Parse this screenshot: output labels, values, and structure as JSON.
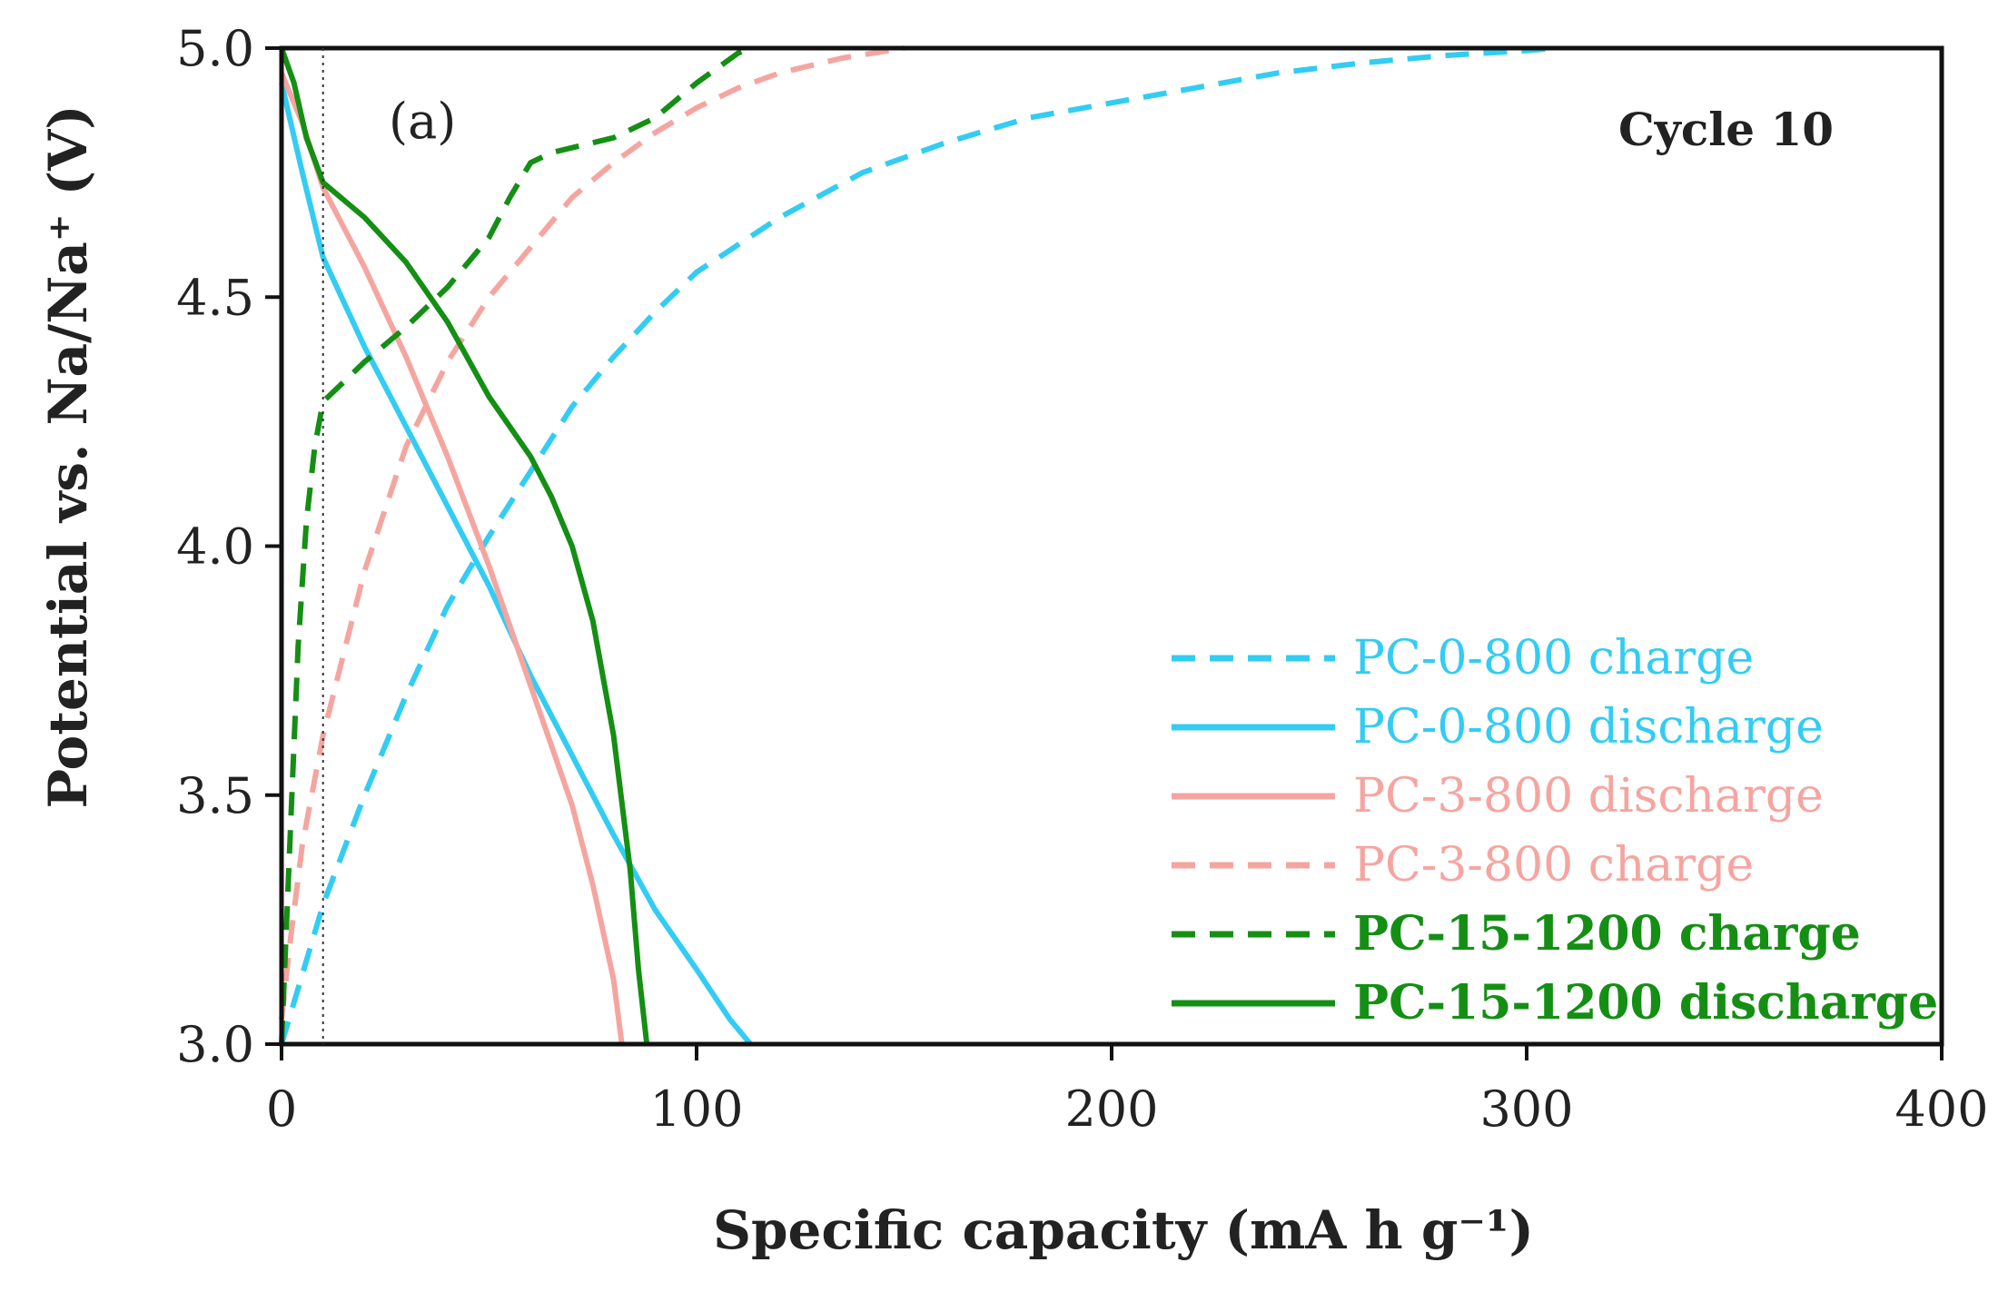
{
  "chart_data": {
    "type": "line",
    "panel_label": "(a)",
    "annotation": "Cycle 10",
    "xlabel": "Specific capacity (mA h g⁻¹)",
    "ylabel": "Potential vs. Na/Na⁺ (V)",
    "xlim": [
      0,
      400
    ],
    "ylim": [
      3.0,
      5.0
    ],
    "x_ticks": [
      0,
      100,
      200,
      300,
      400
    ],
    "y_ticks": [
      3.0,
      3.5,
      4.0,
      4.5,
      5.0
    ],
    "x_tick_labels": [
      "0",
      "100",
      "200",
      "300",
      "400"
    ],
    "y_tick_labels": [
      "3.0",
      "3.5",
      "4.0",
      "4.5",
      "5.0"
    ],
    "reference_line_x": 10,
    "legend_position": "bottom-right",
    "series": [
      {
        "name": "PC-0-800 charge",
        "color": "#33ccf2",
        "style": "dashed",
        "points": [
          [
            0,
            3.0
          ],
          [
            5,
            3.14
          ],
          [
            10,
            3.28
          ],
          [
            20,
            3.5
          ],
          [
            30,
            3.7
          ],
          [
            40,
            3.88
          ],
          [
            50,
            4.02
          ],
          [
            60,
            4.15
          ],
          [
            70,
            4.28
          ],
          [
            80,
            4.38
          ],
          [
            90,
            4.47
          ],
          [
            100,
            4.55
          ],
          [
            120,
            4.66
          ],
          [
            140,
            4.75
          ],
          [
            160,
            4.81
          ],
          [
            180,
            4.86
          ],
          [
            200,
            4.89
          ],
          [
            220,
            4.92
          ],
          [
            240,
            4.95
          ],
          [
            260,
            4.97
          ],
          [
            280,
            4.985
          ],
          [
            300,
            4.995
          ],
          [
            307,
            5.0
          ]
        ]
      },
      {
        "name": "PC-0-800 discharge",
        "color": "#33ccf2",
        "style": "solid",
        "points": [
          [
            0,
            4.93
          ],
          [
            5,
            4.75
          ],
          [
            10,
            4.58
          ],
          [
            20,
            4.4
          ],
          [
            30,
            4.24
          ],
          [
            40,
            4.08
          ],
          [
            50,
            3.92
          ],
          [
            60,
            3.74
          ],
          [
            70,
            3.58
          ],
          [
            80,
            3.42
          ],
          [
            90,
            3.27
          ],
          [
            100,
            3.15
          ],
          [
            108,
            3.05
          ],
          [
            113,
            3.0
          ]
        ]
      },
      {
        "name": "PC-3-800 discharge",
        "color": "#f5a5a0",
        "style": "solid",
        "points": [
          [
            0,
            4.95
          ],
          [
            5,
            4.85
          ],
          [
            10,
            4.72
          ],
          [
            20,
            4.56
          ],
          [
            30,
            4.38
          ],
          [
            40,
            4.18
          ],
          [
            50,
            3.96
          ],
          [
            60,
            3.72
          ],
          [
            70,
            3.48
          ],
          [
            75,
            3.32
          ],
          [
            80,
            3.13
          ],
          [
            82,
            3.0
          ]
        ]
      },
      {
        "name": "PC-3-800 charge",
        "color": "#f5a5a0",
        "style": "dashed",
        "points": [
          [
            0,
            3.05
          ],
          [
            2,
            3.2
          ],
          [
            5,
            3.4
          ],
          [
            10,
            3.62
          ],
          [
            20,
            3.95
          ],
          [
            30,
            4.2
          ],
          [
            40,
            4.37
          ],
          [
            50,
            4.5
          ],
          [
            60,
            4.6
          ],
          [
            70,
            4.7
          ],
          [
            80,
            4.77
          ],
          [
            90,
            4.83
          ],
          [
            100,
            4.88
          ],
          [
            110,
            4.92
          ],
          [
            120,
            4.95
          ],
          [
            135,
            4.98
          ],
          [
            150,
            5.0
          ]
        ]
      },
      {
        "name": "PC-15-1200 charge",
        "color": "#148f14",
        "style": "dashed",
        "points": [
          [
            0,
            3.0
          ],
          [
            2,
            3.4
          ],
          [
            4,
            3.8
          ],
          [
            6,
            4.05
          ],
          [
            8,
            4.2
          ],
          [
            10,
            4.29
          ],
          [
            15,
            4.33
          ],
          [
            20,
            4.37
          ],
          [
            30,
            4.44
          ],
          [
            40,
            4.52
          ],
          [
            50,
            4.62
          ],
          [
            55,
            4.7
          ],
          [
            60,
            4.77
          ],
          [
            65,
            4.79
          ],
          [
            70,
            4.8
          ],
          [
            80,
            4.82
          ],
          [
            90,
            4.86
          ],
          [
            100,
            4.93
          ],
          [
            110,
            4.99
          ],
          [
            113,
            5.0
          ]
        ]
      },
      {
        "name": "PC-15-1200 discharge",
        "color": "#148f14",
        "style": "solid",
        "points": [
          [
            0,
            5.0
          ],
          [
            3,
            4.93
          ],
          [
            6,
            4.82
          ],
          [
            10,
            4.73
          ],
          [
            20,
            4.66
          ],
          [
            30,
            4.57
          ],
          [
            40,
            4.45
          ],
          [
            50,
            4.3
          ],
          [
            60,
            4.18
          ],
          [
            65,
            4.1
          ],
          [
            70,
            4.0
          ],
          [
            75,
            3.85
          ],
          [
            80,
            3.62
          ],
          [
            84,
            3.35
          ],
          [
            86,
            3.15
          ],
          [
            88,
            3.0
          ]
        ]
      }
    ]
  }
}
